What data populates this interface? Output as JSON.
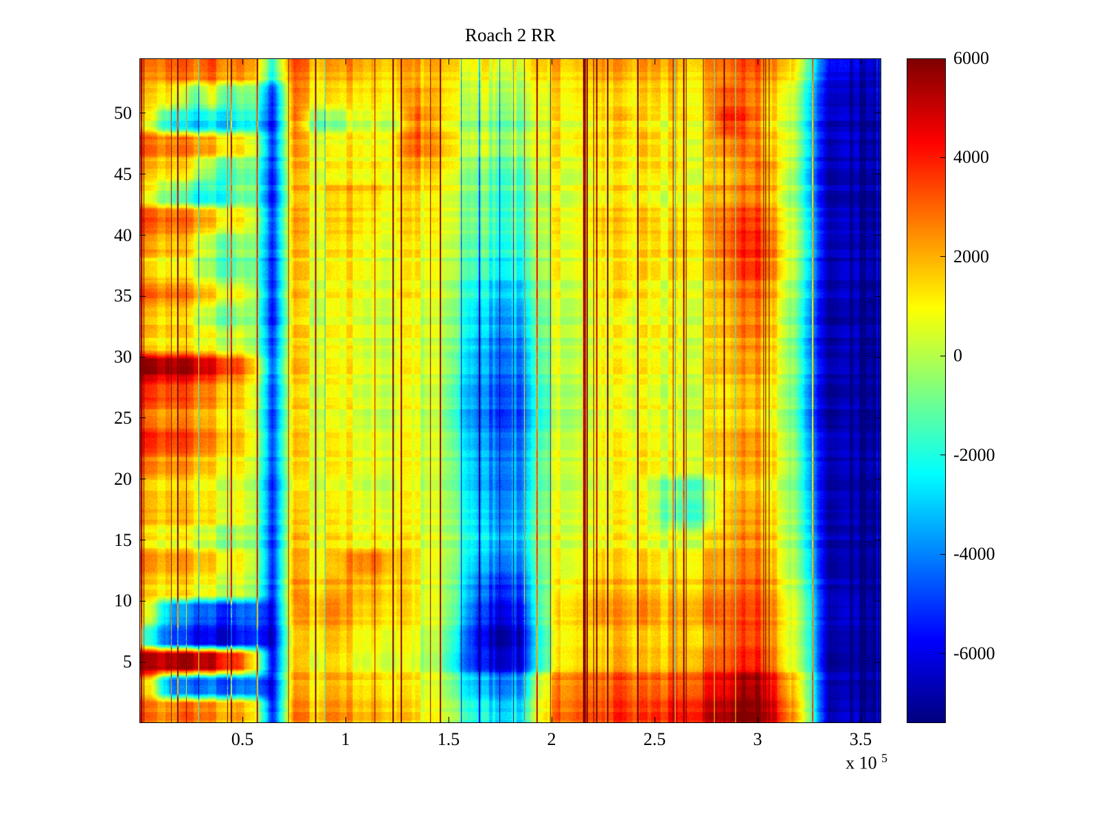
{
  "chart_data": {
    "type": "heatmap",
    "title": "Roach 2 RR",
    "colormap": "jet",
    "clim": [
      -7400,
      6000
    ],
    "legend": "none",
    "grid_lines": "off",
    "x_range": [
      0,
      3.6
    ],
    "x_exponent": {
      "prefix": "x 10",
      "exp": "5"
    },
    "x_ticks": {
      "values": [
        0.5,
        1,
        1.5,
        2,
        2.5,
        3,
        3.5
      ],
      "labels": [
        "0.5",
        "1",
        "1.5",
        "2",
        "2.5",
        "3",
        "3.5"
      ]
    },
    "y_range": [
      0,
      54.5
    ],
    "y_ticks": {
      "values": [
        5,
        10,
        15,
        20,
        25,
        30,
        35,
        40,
        45,
        50
      ],
      "labels": [
        "5",
        "10",
        "15",
        "20",
        "25",
        "30",
        "35",
        "40",
        "45",
        "50"
      ]
    },
    "colorbar_ticks": {
      "values": [
        6000,
        4000,
        2000,
        0,
        -2000,
        -4000,
        -6000
      ],
      "labels": [
        "6000",
        "4000",
        "2000",
        "0",
        "-2000",
        "-4000",
        "-6000"
      ]
    },
    "grid": {
      "cols": 36,
      "rows": 27,
      "row_order": "top-to-bottom",
      "x_col_centers_1e5": [
        0.05,
        0.15,
        0.25,
        0.35,
        0.45,
        0.55,
        0.65,
        0.75,
        0.85,
        0.95,
        1.05,
        1.15,
        1.25,
        1.35,
        1.45,
        1.55,
        1.65,
        1.75,
        1.85,
        1.95,
        2.05,
        2.15,
        2.25,
        2.35,
        2.45,
        2.55,
        2.65,
        2.75,
        2.85,
        2.95,
        3.05,
        3.15,
        3.25,
        3.35,
        3.45,
        3.55
      ],
      "y_row_centers": [
        53,
        51,
        49,
        47,
        45,
        43,
        41,
        39,
        37,
        35,
        33,
        31,
        29,
        27,
        25,
        23,
        21,
        19,
        17,
        15,
        13,
        11,
        9,
        7,
        5,
        3,
        1
      ],
      "values": [
        [
          2800,
          3200,
          2500,
          3000,
          2200,
          2000,
          -2000,
          3000,
          2000,
          1800,
          2200,
          2000,
          1800,
          2000,
          1800,
          1200,
          800,
          500,
          800,
          1500,
          1800,
          2000,
          2200,
          1800,
          2000,
          2200,
          1800,
          2000,
          2800,
          3200,
          2800,
          2000,
          -1500,
          -6000,
          -6500,
          -6500
        ],
        [
          2000,
          1500,
          -1000,
          500,
          -1500,
          -500,
          -5000,
          2800,
          1500,
          1200,
          1500,
          1800,
          1500,
          2500,
          1800,
          800,
          300,
          0,
          300,
          800,
          1500,
          1800,
          1500,
          1200,
          1500,
          1800,
          1500,
          1800,
          3500,
          3000,
          2200,
          1200,
          -2500,
          -6500,
          -7000,
          -6500
        ],
        [
          1000,
          -2000,
          -3000,
          -2500,
          -3000,
          -2000,
          -5500,
          2500,
          -500,
          -1000,
          500,
          800,
          500,
          2800,
          1500,
          500,
          -500,
          -800,
          -500,
          300,
          1200,
          1000,
          1200,
          1500,
          1200,
          1000,
          1500,
          1200,
          4000,
          3200,
          1800,
          800,
          -3000,
          -6800,
          -7000,
          -7000
        ],
        [
          3200,
          2800,
          2400,
          1800,
          1000,
          500,
          -5000,
          2200,
          800,
          500,
          1200,
          1000,
          1500,
          3000,
          2000,
          800,
          0,
          -500,
          0,
          500,
          1200,
          1500,
          1200,
          1000,
          1500,
          1200,
          1000,
          1200,
          2500,
          2800,
          2000,
          1000,
          -2800,
          -7000,
          -6800,
          -7000
        ],
        [
          2200,
          1800,
          800,
          -800,
          -1500,
          -800,
          -5200,
          2000,
          1000,
          800,
          1200,
          1500,
          1200,
          2200,
          1500,
          500,
          -800,
          -1200,
          -800,
          300,
          1000,
          800,
          1200,
          1000,
          1200,
          1500,
          1200,
          1000,
          2000,
          2500,
          2800,
          800,
          -3200,
          -7000,
          -7000,
          -6800
        ],
        [
          1200,
          -500,
          -1800,
          -2200,
          -1500,
          -800,
          -5500,
          1800,
          1200,
          1500,
          1800,
          2000,
          1200,
          1500,
          1000,
          300,
          -1000,
          -1500,
          -1000,
          0,
          800,
          1200,
          1000,
          1200,
          1000,
          800,
          1200,
          1500,
          2200,
          2800,
          2500,
          500,
          -3000,
          -7000,
          -7200,
          -7000
        ],
        [
          3500,
          3000,
          2500,
          1500,
          800,
          300,
          -5000,
          2000,
          1000,
          1200,
          1500,
          1200,
          1000,
          1200,
          800,
          0,
          -1200,
          -1800,
          -1200,
          0,
          1000,
          1200,
          1500,
          1200,
          1500,
          1200,
          1500,
          1800,
          2800,
          3500,
          3000,
          800,
          -2800,
          -7000,
          -7000,
          -7200
        ],
        [
          2500,
          2000,
          1200,
          -500,
          -1200,
          -500,
          -5200,
          1800,
          800,
          1000,
          1200,
          1000,
          800,
          1000,
          600,
          -300,
          -1500,
          -2000,
          -1500,
          -200,
          800,
          1000,
          1200,
          1000,
          1200,
          1500,
          1800,
          1500,
          3000,
          3800,
          3500,
          1000,
          -2500,
          -7000,
          -7200,
          -7000
        ],
        [
          1500,
          1000,
          300,
          -1000,
          -1800,
          -1000,
          -5500,
          1500,
          800,
          600,
          1000,
          800,
          600,
          800,
          400,
          -500,
          -2000,
          -2500,
          -2000,
          -300,
          800,
          1000,
          800,
          1000,
          1200,
          1000,
          1500,
          1200,
          2500,
          3500,
          3200,
          800,
          -3000,
          -7200,
          -7000,
          -7000
        ],
        [
          3200,
          2800,
          2200,
          1200,
          400,
          0,
          -5200,
          1800,
          600,
          800,
          1000,
          800,
          1000,
          800,
          500,
          -800,
          -2500,
          -3000,
          -2500,
          -500,
          600,
          800,
          1000,
          1200,
          1000,
          800,
          1200,
          1000,
          2200,
          3000,
          2800,
          500,
          -3200,
          -7000,
          -7000,
          -7200
        ],
        [
          2200,
          1800,
          1000,
          -300,
          -1000,
          -300,
          -5500,
          1500,
          500,
          700,
          900,
          700,
          800,
          600,
          300,
          -1000,
          -3000,
          -3500,
          -3000,
          -800,
          500,
          700,
          900,
          700,
          900,
          1100,
          900,
          1100,
          2000,
          2800,
          2500,
          300,
          -3500,
          -7200,
          -7200,
          -7000
        ],
        [
          1800,
          1500,
          1000,
          500,
          0,
          -300,
          -5000,
          1500,
          800,
          600,
          800,
          600,
          700,
          500,
          200,
          -1200,
          -3500,
          -4000,
          -3500,
          -1000,
          400,
          600,
          800,
          600,
          800,
          1000,
          800,
          1000,
          1800,
          2500,
          2200,
          200,
          -3800,
          -7200,
          -7000,
          -7200
        ],
        [
          5800,
          5500,
          5000,
          4200,
          3200,
          1500,
          -4500,
          1800,
          800,
          700,
          900,
          700,
          800,
          600,
          300,
          -1500,
          -3800,
          -4200,
          -3800,
          -1200,
          500,
          700,
          900,
          700,
          900,
          700,
          900,
          1100,
          1800,
          2200,
          2000,
          300,
          -3500,
          -7000,
          -7200,
          -7200
        ],
        [
          4200,
          3800,
          3200,
          2500,
          1800,
          800,
          -4800,
          1500,
          700,
          900,
          700,
          900,
          700,
          500,
          200,
          -1800,
          -4000,
          -4500,
          -4000,
          -1500,
          400,
          600,
          800,
          600,
          800,
          600,
          800,
          1000,
          1500,
          2000,
          1800,
          200,
          -3800,
          -7200,
          -7200,
          -7000
        ],
        [
          3200,
          2800,
          2400,
          1800,
          1200,
          500,
          -5000,
          1500,
          800,
          600,
          800,
          600,
          700,
          500,
          100,
          -2000,
          -4200,
          -4800,
          -4200,
          -1800,
          300,
          500,
          700,
          500,
          700,
          900,
          700,
          900,
          1500,
          1800,
          1500,
          100,
          -4000,
          -7200,
          -7000,
          -7200
        ],
        [
          4000,
          3600,
          3000,
          2200,
          1500,
          600,
          -4800,
          1500,
          700,
          800,
          600,
          800,
          600,
          400,
          100,
          -1800,
          -4000,
          -4500,
          -4000,
          -1500,
          400,
          600,
          800,
          600,
          800,
          600,
          800,
          1000,
          1800,
          2200,
          1800,
          200,
          -3800,
          -7000,
          -7200,
          -7200
        ],
        [
          2800,
          2400,
          1800,
          1200,
          600,
          200,
          -5000,
          1200,
          600,
          800,
          600,
          800,
          600,
          400,
          0,
          -1500,
          -3800,
          -4200,
          -3800,
          -1200,
          500,
          700,
          500,
          700,
          900,
          700,
          900,
          700,
          1500,
          2000,
          1800,
          300,
          -3500,
          -7200,
          -7200,
          -7000
        ],
        [
          2000,
          1800,
          1200,
          800,
          400,
          0,
          -5200,
          1200,
          800,
          600,
          800,
          600,
          800,
          600,
          200,
          -1200,
          -3500,
          -4000,
          -3500,
          -1000,
          600,
          800,
          600,
          800,
          600,
          -500,
          -800,
          -500,
          1500,
          1800,
          1500,
          200,
          -3200,
          -7000,
          -7200,
          -7000
        ],
        [
          2200,
          2000,
          1500,
          1000,
          500,
          100,
          -5000,
          1500,
          800,
          1000,
          800,
          1000,
          800,
          600,
          300,
          -1000,
          -3200,
          -3800,
          -3200,
          -800,
          700,
          900,
          700,
          900,
          700,
          -800,
          -1200,
          -800,
          1800,
          2200,
          2000,
          400,
          -3000,
          -7200,
          -7000,
          -7200
        ],
        [
          1500,
          1200,
          600,
          0,
          -600,
          -300,
          -5200,
          1800,
          1000,
          1200,
          1000,
          1500,
          1200,
          800,
          400,
          -800,
          -2800,
          -3200,
          -2800,
          -500,
          800,
          1000,
          800,
          1000,
          800,
          600,
          800,
          1000,
          2000,
          2500,
          2200,
          500,
          -2800,
          -7000,
          -7200,
          -7000
        ],
        [
          2800,
          2500,
          2000,
          1500,
          800,
          300,
          -5000,
          2000,
          1200,
          1500,
          2800,
          3200,
          1800,
          1000,
          500,
          -1000,
          -3500,
          -4000,
          -3500,
          -800,
          1000,
          1200,
          1500,
          1200,
          1500,
          1200,
          1500,
          1800,
          2200,
          2800,
          2500,
          600,
          -2500,
          -7200,
          -7200,
          -7000
        ],
        [
          1800,
          1500,
          1000,
          500,
          0,
          -300,
          -5200,
          2200,
          1500,
          1800,
          2000,
          2200,
          1500,
          800,
          300,
          -1500,
          -4500,
          -5200,
          -4500,
          -1200,
          1200,
          1500,
          1800,
          1500,
          1800,
          1500,
          1800,
          2000,
          2500,
          3000,
          2800,
          800,
          -2200,
          -7000,
          -7200,
          -7200
        ],
        [
          500,
          -3500,
          -4500,
          -5000,
          -5500,
          -4500,
          -6000,
          1800,
          1800,
          2200,
          1500,
          1800,
          1200,
          600,
          100,
          -2000,
          -5500,
          -6200,
          -5500,
          -1500,
          1500,
          1800,
          2200,
          1800,
          2200,
          1800,
          2200,
          2500,
          2800,
          3200,
          3000,
          1000,
          -2000,
          -7200,
          -7000,
          -7200
        ],
        [
          -1500,
          -4500,
          -5500,
          -6000,
          -6200,
          -5000,
          -6200,
          1500,
          1500,
          1800,
          1200,
          1500,
          1000,
          500,
          0,
          -2500,
          -6000,
          -6800,
          -6000,
          -1800,
          1500,
          1800,
          1500,
          1800,
          1500,
          1800,
          2200,
          1800,
          3000,
          3500,
          3200,
          1200,
          -1800,
          -7000,
          -7200,
          -7000
        ],
        [
          5900,
          5800,
          5600,
          5200,
          4000,
          1500,
          -5500,
          1800,
          1200,
          1500,
          1000,
          1200,
          800,
          400,
          -200,
          -2800,
          -5500,
          -6000,
          -5500,
          -1500,
          1800,
          2200,
          1800,
          2200,
          1800,
          2200,
          2500,
          2800,
          3500,
          4200,
          3800,
          1500,
          -1500,
          -7200,
          -7200,
          -7000
        ],
        [
          1500,
          -3800,
          -4500,
          -4200,
          -4800,
          -4000,
          -5800,
          2000,
          1500,
          1800,
          1500,
          1800,
          1200,
          800,
          300,
          -1500,
          -3500,
          -4000,
          -3500,
          500,
          2800,
          3200,
          2800,
          3200,
          2800,
          3200,
          3500,
          3800,
          4500,
          5500,
          5000,
          2500,
          -1000,
          -7000,
          -7200,
          -7200
        ],
        [
          3000,
          2500,
          2800,
          2200,
          1800,
          1000,
          -5500,
          2500,
          1800,
          2200,
          1800,
          2200,
          1500,
          1000,
          500,
          -800,
          -2500,
          -3000,
          -2500,
          800,
          3000,
          3500,
          3000,
          3500,
          3200,
          3800,
          4200,
          4500,
          5200,
          5900,
          5500,
          3000,
          -800,
          -7200,
          -7000,
          -7200
        ]
      ]
    }
  }
}
